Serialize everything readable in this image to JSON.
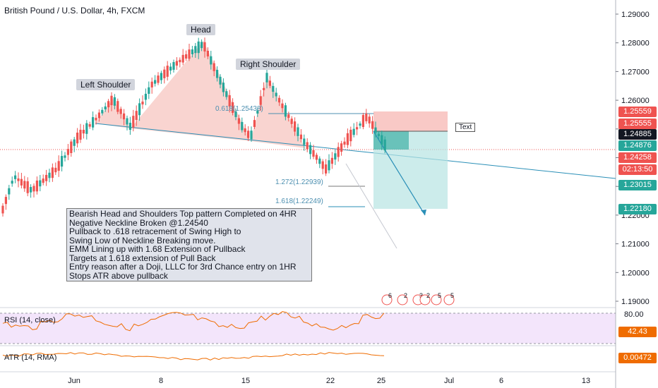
{
  "header": {
    "title": "British Pound / U.S. Dollar, 4h, FXCM"
  },
  "price_axis": [
    "1.29000",
    "1.28000",
    "1.27000",
    "1.26000",
    "1.25000",
    "1.24000",
    "1.23000",
    "1.22000",
    "1.21000",
    "1.20000",
    "1.19000"
  ],
  "time_axis": [
    "Jun",
    "8",
    "15",
    "22",
    "25",
    "Jul",
    "6",
    "13"
  ],
  "price_tags": [
    {
      "text": "1.25559",
      "color": "#ef5350"
    },
    {
      "text": "1.25555",
      "color": "#ef5350"
    },
    {
      "text": "1.24885",
      "color": "#131722"
    },
    {
      "text": "1.24876",
      "color": "#26a69a"
    },
    {
      "text": "1.24258",
      "color": "#ef5350"
    },
    {
      "text": "02:13:50",
      "color": "#ef5350"
    },
    {
      "text": "1.23015",
      "color": "#26a69a"
    },
    {
      "text": "1.22180",
      "color": "#26a69a"
    }
  ],
  "annotations": {
    "head": "Head",
    "left_shoulder": "Left Shoulder",
    "right_shoulder": "Right Shoulder",
    "text_label": "Text",
    "fib_618": "0.618(1.25438)",
    "fib_1272": "1.272(1.22939)",
    "fib_1618": "1.618(1.22249)",
    "note": [
      "Bearish Head and Shoulders Top pattern Completed on 4HR",
      "Negative Neckline Broken @1.24540",
      "Pullback to .618 retracement of Swing High to",
      "Swing Low of Neckline Breaking move.",
      "EMM Lining up with 1.68 Extension of Pullback",
      "Targets at 1.618 extension of Pull Back",
      "Entry reason after a Doji, LLLC for 3rd Chance entry on 1HR",
      "Stops ATR above pullback"
    ]
  },
  "event_counts": [
    "6",
    "2",
    "3",
    "2",
    "5",
    "5"
  ],
  "rsi": {
    "label": "RSI (14, close)",
    "level_high": "80.00",
    "value": "42.43"
  },
  "atr": {
    "label": "ATR (14, RMA)",
    "value": "0.00472"
  },
  "colors": {
    "up": "#26a69a",
    "down": "#ef5350",
    "pattern": "#f8c9c4",
    "trendline": "#2a8fb7",
    "rsi": "#ef6c00"
  },
  "chart_data": {
    "type": "candlestick",
    "symbol": "GBPUSD",
    "timeframe": "4h",
    "ylim": [
      1.185,
      1.295
    ],
    "price_levels": {
      "neckline_break": 1.2454,
      "fib_0618": 1.25438,
      "fib_1272": 1.22939,
      "fib_1618": 1.22249,
      "stop_loss": 1.25559,
      "entry": 1.24885,
      "last_price": 1.24258,
      "target_1": 1.23015,
      "target_2": 1.2218
    },
    "indicators": {
      "RSI": 42.43,
      "ATR": 0.00472
    }
  }
}
